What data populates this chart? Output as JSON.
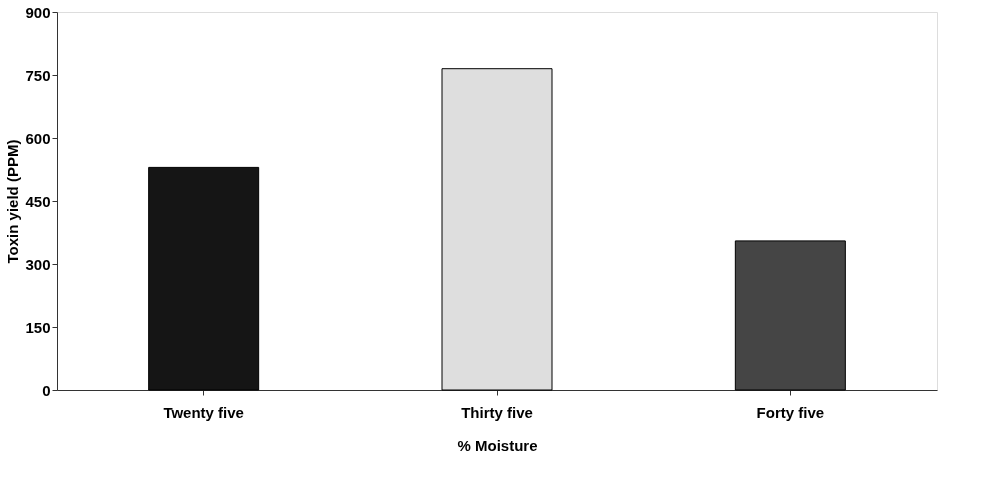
{
  "chart_data": {
    "type": "bar",
    "xlabel": "% Moisture",
    "ylabel": "Toxin yield (PPM)",
    "categories": [
      "Twenty five",
      "Thirty five",
      "Forty five"
    ],
    "values": [
      530,
      765,
      355
    ],
    "colors": [
      "#151515",
      "#dedede",
      "#454545"
    ],
    "ylim": [
      0,
      900
    ],
    "yticks": [
      0,
      150,
      300,
      450,
      600,
      750,
      900
    ],
    "grid": false
  }
}
